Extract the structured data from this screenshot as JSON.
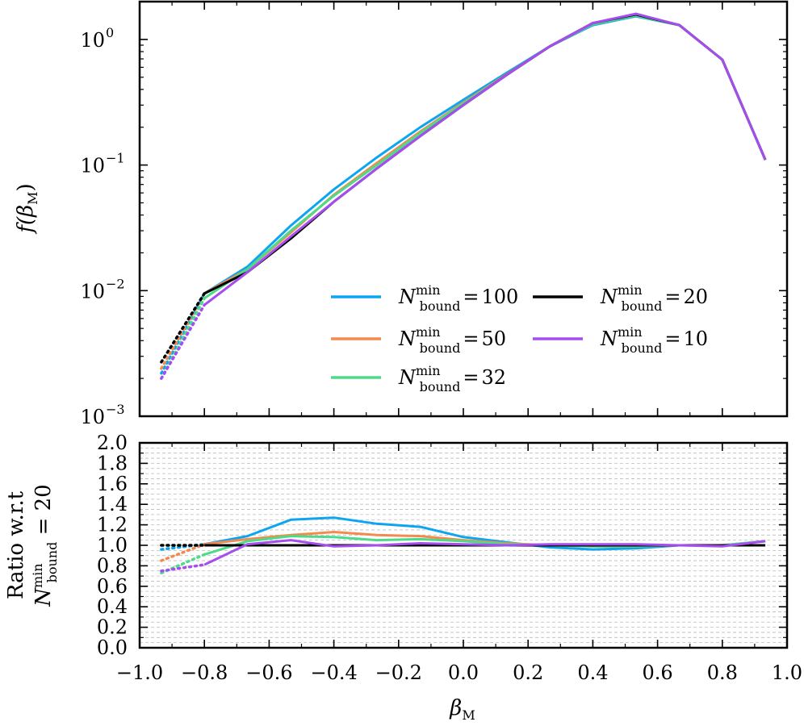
{
  "chart_data": [
    {
      "type": "line",
      "panel": "top",
      "yscale": "log",
      "ylabel": "f(β_M)",
      "ylabel_parts": {
        "f": "f(",
        "beta": "β",
        "sub": "M",
        "close": ")"
      },
      "xlim": [
        -1.0,
        1.0
      ],
      "ylim": [
        0.001,
        2.0
      ],
      "yticks": [
        {
          "value": 1.0,
          "base": "10",
          "exp": "0"
        },
        {
          "value": 0.1,
          "base": "10",
          "exp": "−1"
        },
        {
          "value": 0.01,
          "base": "10",
          "exp": "−2"
        },
        {
          "value": 0.001,
          "base": "10",
          "exp": "−3"
        }
      ],
      "x_solid": [
        -0.8,
        -0.667,
        -0.533,
        -0.4,
        -0.267,
        -0.133,
        0.0,
        0.133,
        0.267,
        0.4,
        0.533,
        0.667,
        0.8,
        0.933
      ],
      "x_dotted": [
        -0.933,
        -0.8
      ],
      "series": [
        {
          "name": "N_bound^min = 100",
          "value_label": "100",
          "color": "#0DA5F0",
          "values": [
            0.0095,
            0.0155,
            0.033,
            0.064,
            0.115,
            0.2,
            0.33,
            0.54,
            0.88,
            1.3,
            1.53,
            1.3,
            0.69,
            0.11
          ],
          "dotted": [
            0.0022,
            0.0095
          ]
        },
        {
          "name": "N_bound^min = 50",
          "value_label": "50",
          "color": "#F58A4E",
          "values": [
            0.0095,
            0.0148,
            0.029,
            0.058,
            0.104,
            0.185,
            0.315,
            0.525,
            0.88,
            1.32,
            1.55,
            1.3,
            0.69,
            0.11
          ],
          "dotted": [
            0.0024,
            0.0095
          ]
        },
        {
          "name": "N_bound^min = 32",
          "value_label": "32",
          "color": "#4DDB8A",
          "values": [
            0.0087,
            0.0148,
            0.03,
            0.057,
            0.1,
            0.18,
            0.31,
            0.52,
            0.88,
            1.32,
            1.55,
            1.3,
            0.69,
            0.11
          ],
          "dotted": [
            0.002,
            0.0087
          ]
        },
        {
          "name": "N_bound^min = 20",
          "value_label": "20",
          "color": "#000000",
          "values": [
            0.0095,
            0.014,
            0.026,
            0.051,
            0.094,
            0.17,
            0.3,
            0.52,
            0.88,
            1.35,
            1.58,
            1.3,
            0.69,
            0.11
          ],
          "dotted": [
            0.0027,
            0.0095
          ]
        },
        {
          "name": "N_bound^min = 10",
          "value_label": "10",
          "color": "#A64DF0",
          "values": [
            0.0077,
            0.014,
            0.027,
            0.051,
            0.094,
            0.17,
            0.3,
            0.52,
            0.88,
            1.35,
            1.6,
            1.3,
            0.69,
            0.11
          ],
          "dotted": [
            0.002,
            0.0077
          ]
        }
      ],
      "legend_position": "lower-right"
    },
    {
      "type": "line",
      "panel": "bottom",
      "ylabel_line1": "Ratio w.r.t",
      "ylabel_line2": {
        "N": "N",
        "sup": "min",
        "sub": "bound",
        "rest": " = 20"
      },
      "xlabel": "β_M",
      "xlabel_parts": {
        "beta": "β",
        "sub": "M"
      },
      "xlim": [
        -1.0,
        1.0
      ],
      "ylim": [
        0.0,
        2.0
      ],
      "grid": "horizontal-dashed",
      "yticks": [
        0.0,
        0.2,
        0.4,
        0.6,
        0.8,
        1.0,
        1.2,
        1.4,
        1.6,
        1.8,
        2.0
      ],
      "ytick_labels": [
        "0.0",
        "0.2",
        "0.4",
        "0.6",
        "0.8",
        "1.0",
        "1.2",
        "1.4",
        "1.6",
        "1.8",
        "2.0"
      ],
      "xticks": [
        -1.0,
        -0.8,
        -0.6,
        -0.4,
        -0.2,
        0.0,
        0.2,
        0.4,
        0.6,
        0.8,
        1.0
      ],
      "xtick_labels": [
        "−1.0",
        "−0.8",
        "−0.6",
        "−0.4",
        "−0.2",
        "0.0",
        "0.2",
        "0.4",
        "0.6",
        "0.8",
        "1.0"
      ],
      "x_solid": [
        -0.8,
        -0.667,
        -0.533,
        -0.4,
        -0.267,
        -0.133,
        0.0,
        0.133,
        0.267,
        0.4,
        0.533,
        0.667,
        0.8,
        0.933
      ],
      "x_dotted": [
        -0.933,
        -0.8
      ],
      "series": [
        {
          "name": "100",
          "color": "#0DA5F0",
          "values": [
            1.01,
            1.09,
            1.25,
            1.27,
            1.21,
            1.18,
            1.08,
            1.03,
            0.98,
            0.96,
            0.97,
            1.0,
            1.0,
            1.04
          ],
          "dotted": [
            0.96,
            1.01
          ]
        },
        {
          "name": "50",
          "color": "#F58A4E",
          "values": [
            1.01,
            1.06,
            1.1,
            1.13,
            1.1,
            1.09,
            1.05,
            1.02,
            1.0,
            0.99,
            0.99,
            1.0,
            1.0,
            1.04
          ],
          "dotted": [
            0.85,
            1.01
          ]
        },
        {
          "name": "32",
          "color": "#4DDB8A",
          "values": [
            0.91,
            1.04,
            1.09,
            1.08,
            1.05,
            1.06,
            1.04,
            1.01,
            1.0,
            0.99,
            0.99,
            1.0,
            1.0,
            1.04
          ],
          "dotted": [
            0.73,
            0.91
          ]
        },
        {
          "name": "20",
          "color": "#000000",
          "values": [
            1.0,
            1.0,
            1.0,
            1.0,
            1.0,
            1.0,
            1.0,
            1.0,
            1.0,
            1.0,
            1.0,
            1.0,
            1.0,
            1.0
          ],
          "dotted": [
            1.0,
            1.0
          ]
        },
        {
          "name": "10",
          "color": "#A64DF0",
          "values": [
            0.81,
            1.01,
            1.05,
            0.99,
            1.0,
            1.02,
            1.01,
            1.0,
            1.01,
            1.01,
            1.01,
            1.0,
            0.99,
            1.04
          ],
          "dotted": [
            0.75,
            0.81
          ]
        }
      ]
    }
  ],
  "legend": {
    "symbol": "N",
    "sup": "min",
    "sub": "bound",
    "equals": "=",
    "order": [
      0,
      3,
      1,
      4,
      2
    ]
  }
}
